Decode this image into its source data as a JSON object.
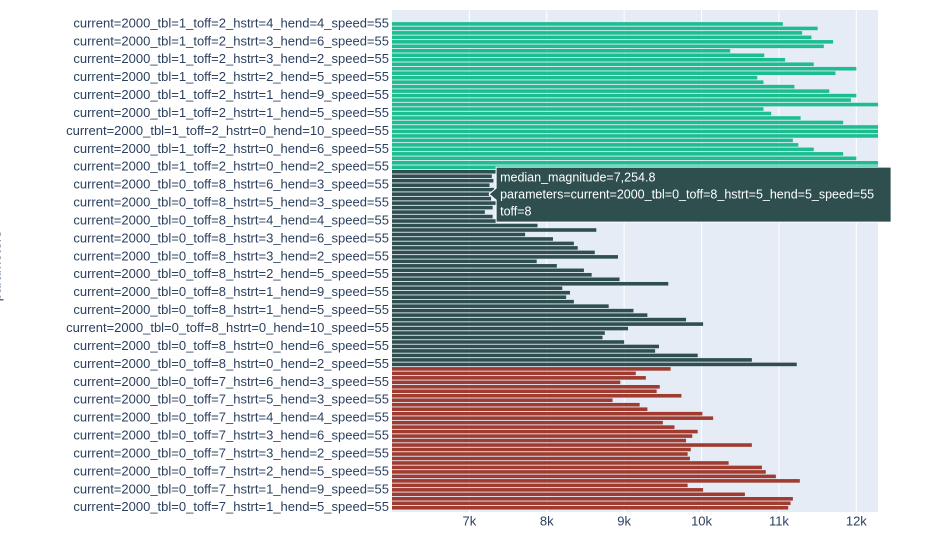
{
  "chart_data": {
    "type": "bar",
    "orientation": "horizontal",
    "y_label": "parameters",
    "categories": [
      "current=2000_tbl=0_toff=7_hstrt=1_hend=5_speed=55",
      null,
      null,
      null,
      "current=2000_tbl=0_toff=7_hstrt=1_hend=9_speed=55",
      null,
      null,
      null,
      "current=2000_tbl=0_toff=7_hstrt=2_hend=5_speed=55",
      null,
      null,
      null,
      "current=2000_tbl=0_toff=7_hstrt=3_hend=2_speed=55",
      null,
      null,
      null,
      "current=2000_tbl=0_toff=7_hstrt=3_hend=6_speed=55",
      null,
      null,
      null,
      "current=2000_tbl=0_toff=7_hstrt=4_hend=4_speed=55",
      null,
      null,
      null,
      "current=2000_tbl=0_toff=7_hstrt=5_hend=3_speed=55",
      null,
      null,
      null,
      "current=2000_tbl=0_toff=7_hstrt=6_hend=3_speed=55",
      null,
      null,
      null,
      "current=2000_tbl=0_toff=8_hstrt=0_hend=2_speed=55",
      null,
      null,
      null,
      "current=2000_tbl=0_toff=8_hstrt=0_hend=6_speed=55",
      null,
      null,
      null,
      "current=2000_tbl=0_toff=8_hstrt=0_hend=10_speed=55",
      null,
      null,
      null,
      "current=2000_tbl=0_toff=8_hstrt=1_hend=5_speed=55",
      null,
      null,
      null,
      "current=2000_tbl=0_toff=8_hstrt=1_hend=9_speed=55",
      null,
      null,
      null,
      "current=2000_tbl=0_toff=8_hstrt=2_hend=5_speed=55",
      null,
      null,
      null,
      "current=2000_tbl=0_toff=8_hstrt=3_hend=2_speed=55",
      null,
      null,
      null,
      "current=2000_tbl=0_toff=8_hstrt=3_hend=6_speed=55",
      null,
      null,
      null,
      "current=2000_tbl=0_toff=8_hstrt=4_hend=4_speed=55",
      null,
      null,
      null,
      "current=2000_tbl=0_toff=8_hstrt=5_hend=3_speed=55",
      null,
      null,
      null,
      "current=2000_tbl=0_toff=8_hstrt=6_hend=3_speed=55",
      null,
      null,
      null,
      "current=2000_tbl=1_toff=2_hstrt=0_hend=2_speed=55",
      null,
      null,
      null,
      "current=2000_tbl=1_toff=2_hstrt=0_hend=6_speed=55",
      null,
      null,
      null,
      "current=2000_tbl=1_toff=2_hstrt=0_hend=10_speed=55",
      null,
      null,
      null,
      "current=2000_tbl=1_toff=2_hstrt=1_hend=5_speed=55",
      null,
      null,
      null,
      "current=2000_tbl=1_toff=2_hstrt=1_hend=9_speed=55",
      null,
      null,
      null,
      "current=2000_tbl=1_toff=2_hstrt=2_hend=5_speed=55",
      null,
      null,
      null,
      "current=2000_tbl=1_toff=2_hstrt=3_hend=2_speed=55",
      null,
      null,
      null,
      "current=2000_tbl=1_toff=2_hstrt=3_hend=6_speed=55",
      null,
      null,
      null,
      "current=2000_tbl=1_toff=2_hstrt=4_hend=4_speed=55"
    ],
    "series": [
      {
        "color": "#a03b30",
        "values": [
          11120,
          11150,
          11180,
          10560,
          10020,
          9820,
          11270,
          10960,
          10830,
          10780,
          10350,
          9850,
          9820,
          9860,
          10650,
          9800,
          9880,
          9950,
          9650,
          9500,
          10150,
          10010,
          9300,
          9200,
          8850,
          9740,
          9420,
          9460,
          8950,
          9280,
          9150,
          9600,
          null,
          null,
          null,
          null,
          null,
          null,
          null,
          null,
          null,
          null,
          null,
          null,
          null,
          null,
          null,
          null,
          null,
          null,
          null,
          null,
          null,
          null,
          null,
          null,
          null,
          null,
          null,
          null,
          null,
          null,
          null,
          null,
          null,
          null,
          null,
          null,
          null,
          null,
          null,
          null,
          null,
          null,
          null,
          null,
          null,
          null,
          null,
          null,
          null,
          null,
          null,
          null,
          null,
          null,
          null,
          null,
          null,
          null,
          null,
          null,
          null,
          null,
          null,
          null,
          null,
          null,
          null,
          null,
          null,
          null,
          null,
          null,
          null,
          null,
          null,
          null,
          null
        ]
      },
      {
        "color": "#2f4f4f",
        "values": [
          null,
          null,
          null,
          null,
          null,
          null,
          null,
          null,
          null,
          null,
          null,
          null,
          null,
          null,
          null,
          null,
          null,
          null,
          null,
          null,
          null,
          null,
          null,
          null,
          null,
          null,
          null,
          null,
          null,
          null,
          null,
          null,
          11230,
          10650,
          9950,
          9400,
          9450,
          9000,
          8720,
          8750,
          9050,
          10020,
          9800,
          9300,
          9120,
          8800,
          8350,
          8250,
          8300,
          8200,
          9570,
          8940,
          8580,
          8480,
          8130,
          7870,
          8920,
          8620,
          8400,
          8350,
          8080,
          7720,
          8640,
          7880,
          7350,
          7300,
          7200,
          7300,
          7350,
          7280,
          7254.8,
          7320,
          7260,
          7310,
          7290,
          7340,
          null,
          null,
          null,
          null,
          null,
          null,
          null,
          null,
          null,
          null,
          null,
          null,
          null,
          null,
          null,
          null,
          null,
          null,
          null,
          null,
          null,
          null,
          null,
          null,
          null,
          null,
          null,
          null,
          null,
          null,
          null,
          null,
          null
        ]
      },
      {
        "color": "#1cbe8f",
        "values": [
          null,
          null,
          null,
          null,
          null,
          null,
          null,
          null,
          null,
          null,
          null,
          null,
          null,
          null,
          null,
          null,
          null,
          null,
          null,
          null,
          null,
          null,
          null,
          null,
          null,
          null,
          null,
          null,
          null,
          null,
          null,
          null,
          null,
          null,
          null,
          null,
          null,
          null,
          null,
          null,
          null,
          null,
          null,
          null,
          null,
          null,
          null,
          null,
          null,
          null,
          null,
          null,
          null,
          null,
          null,
          null,
          null,
          null,
          null,
          null,
          null,
          null,
          null,
          null,
          null,
          null,
          null,
          null,
          null,
          null,
          null,
          null,
          null,
          null,
          null,
          null,
          12400,
          12400,
          12000,
          11830,
          11450,
          11250,
          11180,
          12400,
          12400,
          12400,
          11830,
          11280,
          10900,
          10800,
          12400,
          11930,
          12000,
          11650,
          11200,
          10800,
          10720,
          11730,
          12000,
          11450,
          11080,
          10810,
          10370,
          11580,
          11700,
          11420,
          11300,
          11500,
          11050
        ]
      }
    ],
    "xlim": [
      6000,
      12280
    ],
    "xticks": [
      {
        "value": 7000,
        "label": "7k"
      },
      {
        "value": 8000,
        "label": "8k"
      },
      {
        "value": 9000,
        "label": "9k"
      },
      {
        "value": 10000,
        "label": "10k"
      },
      {
        "value": 11000,
        "label": "11k"
      },
      {
        "value": 12000,
        "label": "12k"
      }
    ],
    "grid": true,
    "hover": {
      "series": 1,
      "index": 70,
      "lines": [
        "median_magnitude=7,254.8",
        "parameters=current=2000_tbl=0_toff=8_hstrt=5_hend=5_speed=55",
        "toff=8"
      ]
    }
  }
}
